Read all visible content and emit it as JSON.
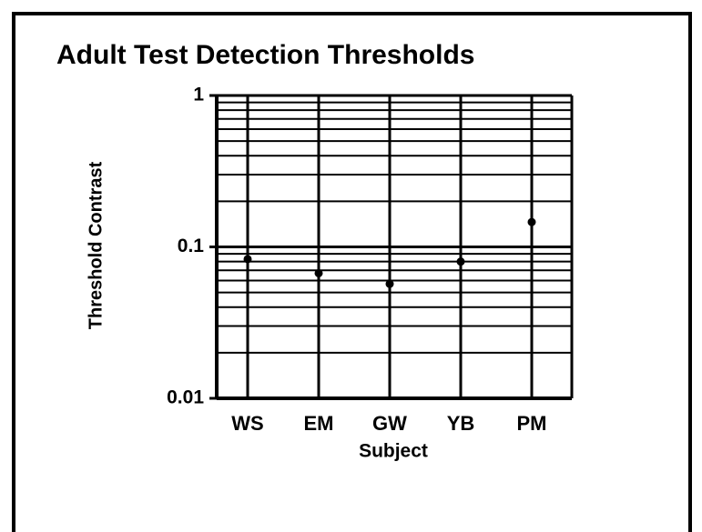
{
  "chart_data": {
    "type": "scatter",
    "title": "Adult Test Detection Thresholds",
    "x_label": "Subject",
    "y_label": "Threshold Contrast",
    "categories": [
      "WS",
      "EM",
      "GW",
      "YB",
      "PM"
    ],
    "values": [
      0.083,
      0.067,
      0.057,
      0.08,
      0.146
    ],
    "color": "#000000",
    "log_y": true,
    "grid": true,
    "ylim": [
      0.01,
      1
    ],
    "yticks": [
      0.01,
      0.1,
      1
    ],
    "y_minor_ticks": [
      0.02,
      0.03,
      0.04,
      0.05,
      0.06,
      0.07,
      0.08,
      0.09,
      0.2,
      0.3,
      0.4,
      0.5,
      0.6,
      0.7,
      0.8,
      0.9
    ]
  }
}
